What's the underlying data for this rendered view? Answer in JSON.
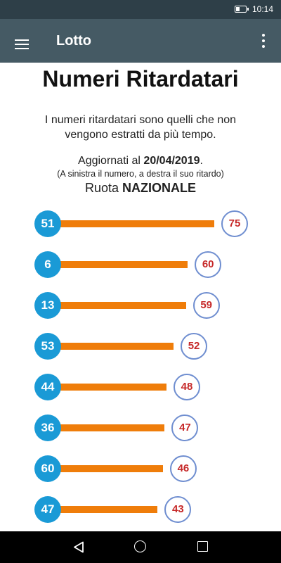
{
  "status_bar": {
    "time": "10:14",
    "battery_level": 0.35
  },
  "app_bar": {
    "title": "Lotto",
    "menu_icon": "hamburger-menu-icon",
    "overflow_icon": "more-vert-icon"
  },
  "page": {
    "title": "Numeri Ritardatari",
    "intro": "I numeri ritardatari sono quelli che non vengono estratti da più tempo.",
    "updated_prefix": "Aggiornati al ",
    "updated_date": "20/04/2019",
    "updated_suffix": ".",
    "note": "(A sinistra il numero, a destra il suo ritardo)",
    "wheel_prefix": "Ruota ",
    "wheel_name": "NAZIONALE"
  },
  "delays": [
    {
      "number": "51",
      "delay": 75
    },
    {
      "number": "6",
      "delay": 60
    },
    {
      "number": "13",
      "delay": 59
    },
    {
      "number": "53",
      "delay": 52
    },
    {
      "number": "44",
      "delay": 48
    },
    {
      "number": "36",
      "delay": 47
    },
    {
      "number": "60",
      "delay": 46
    },
    {
      "number": "47",
      "delay": 43
    }
  ],
  "colors": {
    "status_bar": "#2e3f48",
    "app_bar": "#455a64",
    "number_circle": "#1a9ad6",
    "bar": "#ef7d0a",
    "delay_border": "#6f8ed0",
    "delay_text": "#c62828"
  },
  "nav_bar": {
    "back_icon": "triangle-back-icon",
    "home_icon": "circle-home-icon",
    "recents_icon": "square-recents-icon"
  }
}
